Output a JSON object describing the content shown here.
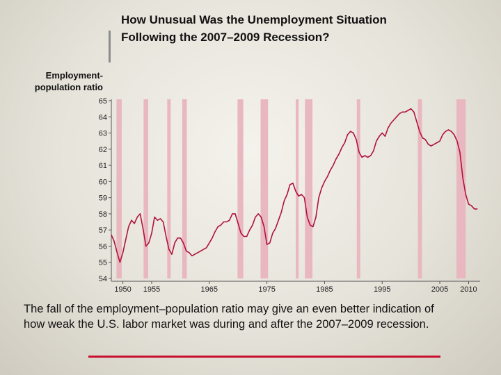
{
  "slide": {
    "title_line1": "How Unusual Was the Unemployment Situation",
    "title_line2": "Following the 2007–2009 Recession?",
    "caption_line1": "The fall of the employment–population ratio may give an even better indication of",
    "caption_line2": "how weak the U.S. labor market was during and after the 2007–2009 recession."
  },
  "colors": {
    "line": "#b0123a",
    "recession_fill": "#e9b7bf",
    "rule": "#c8102e"
  },
  "chart_data": {
    "type": "line",
    "title": "",
    "ylabel_line1": "Employment-",
    "ylabel_line2": "population ratio",
    "xlabel": "",
    "xlim": [
      1948,
      2012
    ],
    "ylim": [
      54,
      65
    ],
    "yticks": [
      54,
      55,
      56,
      57,
      58,
      59,
      60,
      61,
      62,
      63,
      64,
      65
    ],
    "xticks": [
      {
        "value": 1950,
        "label": "1950"
      },
      {
        "value": 1955,
        "label": "1955"
      },
      {
        "value": 1965,
        "label": "1965"
      },
      {
        "value": 1975,
        "label": "1975"
      },
      {
        "value": 1985,
        "label": "1985"
      },
      {
        "value": 1995,
        "label": "1995"
      },
      {
        "value": 2005,
        "label": "2005"
      },
      {
        "value": 2010,
        "label": "2010"
      }
    ],
    "grid": false,
    "recessions": [
      [
        1948.9,
        1949.8
      ],
      [
        1953.6,
        1954.4
      ],
      [
        1957.7,
        1958.3
      ],
      [
        1960.3,
        1961.1
      ],
      [
        1969.9,
        1970.9
      ],
      [
        1973.9,
        1975.2
      ],
      [
        1980.0,
        1980.5
      ],
      [
        1981.6,
        1982.9
      ],
      [
        1990.6,
        1991.2
      ],
      [
        2001.2,
        2001.9
      ],
      [
        2007.9,
        2009.5
      ]
    ],
    "series": [
      {
        "x": [
          1948.0,
          1948.5,
          1949.0,
          1949.5,
          1950.0,
          1950.5,
          1951.0,
          1951.5,
          1952.0,
          1952.5,
          1953.0,
          1953.5,
          1954.0,
          1954.5,
          1955.0,
          1955.5,
          1956.0,
          1956.5,
          1957.0,
          1957.5,
          1958.0,
          1958.5,
          1959.0,
          1959.5,
          1960.0,
          1960.5,
          1961.0,
          1961.5,
          1962.0,
          1962.5,
          1963.0,
          1963.5,
          1964.0,
          1964.5,
          1965.0,
          1965.5,
          1966.0,
          1966.5,
          1967.0,
          1967.5,
          1968.0,
          1968.5,
          1969.0,
          1969.5,
          1970.0,
          1970.5,
          1971.0,
          1971.5,
          1972.0,
          1972.5,
          1973.0,
          1973.5,
          1974.0,
          1974.5,
          1975.0,
          1975.5,
          1976.0,
          1976.5,
          1977.0,
          1977.5,
          1978.0,
          1978.5,
          1979.0,
          1979.5,
          1980.0,
          1980.5,
          1981.0,
          1981.5,
          1982.0,
          1982.5,
          1983.0,
          1983.5,
          1984.0,
          1984.5,
          1985.0,
          1985.5,
          1986.0,
          1986.5,
          1987.0,
          1987.5,
          1988.0,
          1988.5,
          1989.0,
          1989.5,
          1990.0,
          1990.5,
          1991.0,
          1991.5,
          1992.0,
          1992.5,
          1993.0,
          1993.5,
          1994.0,
          1994.5,
          1995.0,
          1995.5,
          1996.0,
          1996.5,
          1997.0,
          1997.5,
          1998.0,
          1998.5,
          1999.0,
          1999.5,
          2000.0,
          2000.5,
          2001.0,
          2001.5,
          2002.0,
          2002.5,
          2003.0,
          2003.5,
          2004.0,
          2004.5,
          2005.0,
          2005.5,
          2006.0,
          2006.5,
          2007.0,
          2007.5,
          2008.0,
          2008.5,
          2009.0,
          2009.5,
          2010.0,
          2010.5,
          2011.0,
          2011.5
        ],
        "values": [
          56.7,
          56.3,
          55.6,
          55.0,
          55.6,
          56.4,
          57.2,
          57.6,
          57.4,
          57.8,
          58.0,
          57.1,
          56.0,
          56.2,
          56.8,
          57.8,
          57.6,
          57.7,
          57.5,
          56.6,
          55.8,
          55.5,
          56.2,
          56.5,
          56.5,
          56.2,
          55.7,
          55.6,
          55.4,
          55.5,
          55.6,
          55.7,
          55.8,
          55.9,
          56.2,
          56.5,
          56.9,
          57.2,
          57.3,
          57.5,
          57.5,
          57.6,
          58.0,
          58.0,
          57.4,
          56.8,
          56.6,
          56.6,
          57.0,
          57.3,
          57.8,
          58.0,
          57.8,
          57.2,
          56.1,
          56.2,
          56.8,
          57.1,
          57.6,
          58.1,
          58.8,
          59.2,
          59.8,
          59.9,
          59.4,
          59.1,
          59.2,
          59.0,
          57.8,
          57.3,
          57.2,
          57.8,
          59.0,
          59.6,
          60.0,
          60.3,
          60.7,
          61.0,
          61.4,
          61.7,
          62.1,
          62.4,
          62.9,
          63.1,
          63.0,
          62.6,
          61.8,
          61.5,
          61.6,
          61.5,
          61.6,
          61.9,
          62.5,
          62.8,
          63.0,
          62.8,
          63.3,
          63.6,
          63.8,
          64.0,
          64.2,
          64.3,
          64.3,
          64.4,
          64.5,
          64.3,
          63.7,
          63.1,
          62.7,
          62.6,
          62.3,
          62.2,
          62.3,
          62.4,
          62.5,
          62.9,
          63.1,
          63.2,
          63.1,
          62.9,
          62.5,
          61.8,
          60.2,
          59.2,
          58.6,
          58.5,
          58.3,
          58.3
        ],
        "name": ""
      }
    ]
  }
}
